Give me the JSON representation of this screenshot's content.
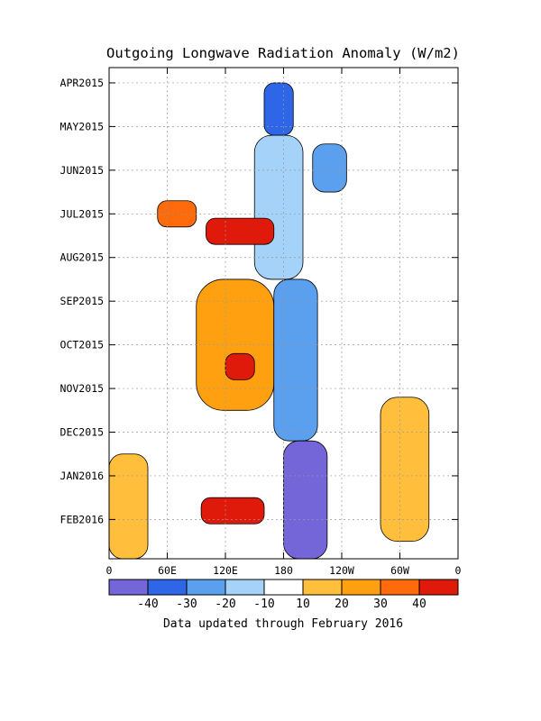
{
  "chart_data": {
    "type": "heatmap",
    "title": "Outgoing Longwave Radiation Anomaly (W/m2)",
    "footer": "Data updated through February 2016",
    "xlabel": "",
    "ylabel": "",
    "x_tick_labels": [
      "0",
      "60E",
      "120E",
      "180",
      "120W",
      "60W",
      "0"
    ],
    "x_ticks_deg_east": [
      0,
      60,
      120,
      180,
      240,
      300,
      360
    ],
    "xlim_deg_east": [
      0,
      360
    ],
    "y_tick_labels": [
      "APR2015",
      "MAY2015",
      "JUN2015",
      "JUL2015",
      "AUG2015",
      "SEP2015",
      "OCT2015",
      "NOV2015",
      "DEC2015",
      "JAN2016",
      "FEB2016"
    ],
    "y_ticks_month_index": [
      0,
      1,
      2,
      3,
      4,
      5,
      6,
      7,
      8,
      9,
      10
    ],
    "ylim_month_index": [
      -0.35,
      10.9
    ],
    "y_axis_direction": "time increases downward",
    "grid": true,
    "colorbar": {
      "placement": "bottom",
      "labels": [
        "-40",
        "-30",
        "-20",
        "-10",
        "10",
        "20",
        "30",
        "40"
      ],
      "bounds": [
        -50,
        -40,
        -30,
        -20,
        -10,
        10,
        20,
        30,
        40,
        50
      ],
      "colors": [
        "#7466d8",
        "#2f66e8",
        "#5aa0ee",
        "#a4d2f8",
        "#ffffff",
        "#ffbe3c",
        "#ffa010",
        "#ff6a0a",
        "#e01a0a"
      ]
    },
    "features": [
      {
        "lon": [
          160,
          190
        ],
        "month": [
          0,
          1.2
        ],
        "value": -40
      },
      {
        "lon": [
          150,
          200
        ],
        "month": [
          1.2,
          4.5
        ],
        "value": -15
      },
      {
        "lon": [
          210,
          245
        ],
        "month": [
          1.4,
          2.5
        ],
        "value": -25
      },
      {
        "lon": [
          100,
          170
        ],
        "month": [
          3.1,
          3.7
        ],
        "value": 40
      },
      {
        "lon": [
          50,
          90
        ],
        "month": [
          2.7,
          3.3
        ],
        "value": 35
      },
      {
        "lon": [
          90,
          170
        ],
        "month": [
          4.5,
          7.5
        ],
        "value": 25
      },
      {
        "lon": [
          120,
          150
        ],
        "month": [
          6.2,
          6.8
        ],
        "value": 40
      },
      {
        "lon": [
          170,
          215
        ],
        "month": [
          4.5,
          8.2
        ],
        "value": -30
      },
      {
        "lon": [
          180,
          225
        ],
        "month": [
          8.2,
          10.9
        ],
        "value": -50
      },
      {
        "lon": [
          95,
          160
        ],
        "month": [
          9.5,
          10.1
        ],
        "value": 40
      },
      {
        "lon": [
          280,
          330
        ],
        "month": [
          7.2,
          10.5
        ],
        "value": 15
      },
      {
        "lon": [
          0,
          40
        ],
        "month": [
          8.5,
          10.9
        ],
        "value": 15
      }
    ]
  }
}
